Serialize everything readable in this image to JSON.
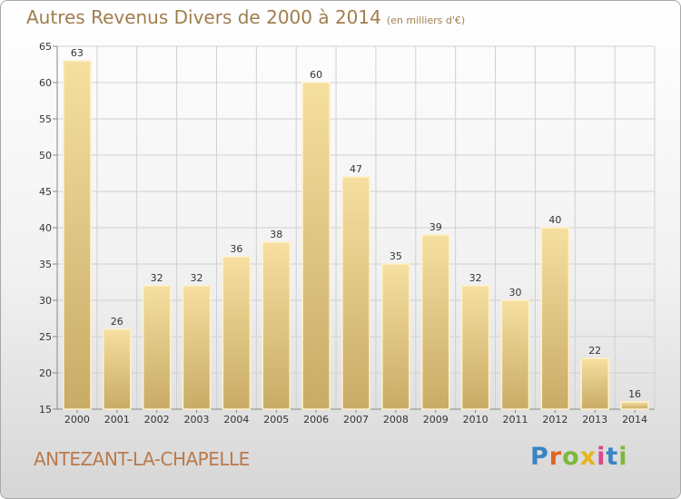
{
  "title": "Autres Revenus Divers de 2000 à 2014",
  "subtitle": "(en milliers d'€)",
  "commune": "ANTEZANT-LA-CHAPELLE",
  "logo": "Proxiti",
  "colors": {
    "bar_top": "#f6dfa0",
    "bar_bottom": "#c8ab66",
    "bar_edge": "#fff2c8",
    "title": "#a07e4d",
    "grid": "#d0d0d0"
  },
  "chart_data": {
    "type": "bar",
    "title": "Autres Revenus Divers de 2000 à 2014",
    "categories": [
      "2000",
      "2001",
      "2002",
      "2003",
      "2004",
      "2005",
      "2006",
      "2007",
      "2008",
      "2009",
      "2010",
      "2011",
      "2012",
      "2013",
      "2014"
    ],
    "values": [
      63,
      26,
      32,
      32,
      36,
      38,
      60,
      47,
      35,
      39,
      32,
      30,
      40,
      22,
      16
    ],
    "ylim": [
      15,
      65
    ],
    "yticks": [
      15,
      20,
      25,
      30,
      35,
      40,
      45,
      50,
      55,
      60,
      65
    ],
    "grid": true,
    "data_labels": true
  }
}
